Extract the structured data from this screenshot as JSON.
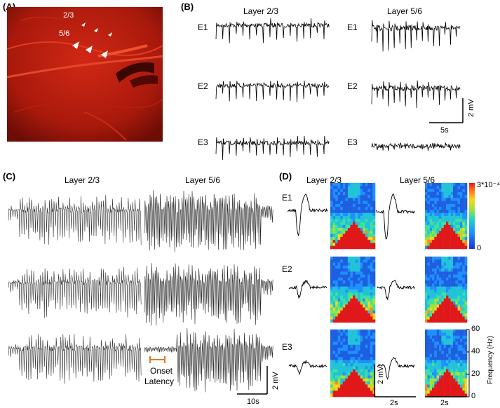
{
  "panels": {
    "A": {
      "label": "(A)",
      "annotations": [
        "2/3",
        "5/6"
      ],
      "image_color": "#c81e10"
    },
    "B": {
      "label": "(B)",
      "layer_titles": [
        "Layer 2/3",
        "Layer 5/6"
      ],
      "electrodes": [
        "E1",
        "E2",
        "E3"
      ],
      "scale_v": "2 mV",
      "scale_t": "5s"
    },
    "C": {
      "label": "(C)",
      "layer_titles": [
        "Layer 2/3",
        "Layer 5/6"
      ],
      "onset_label_1": "Onset",
      "onset_label_2": "Latency",
      "onset_color": "#e07b20",
      "scale_v": "2 mV",
      "scale_t": "10s"
    },
    "D": {
      "label": "(D)",
      "layer_titles": [
        "Layer 2/3",
        "Layer 5/6"
      ],
      "electrodes": [
        "E1",
        "E2",
        "E3"
      ],
      "colorbar_max": "3*10⁻⁴",
      "colorbar_min": "0",
      "freq_axis_label": "Frequency (Hz)",
      "freq_ticks": [
        "60",
        "40",
        "20",
        "0"
      ],
      "scale_v": "2 mV",
      "time_scale_1": "2s",
      "time_scale_2": "2s"
    }
  }
}
